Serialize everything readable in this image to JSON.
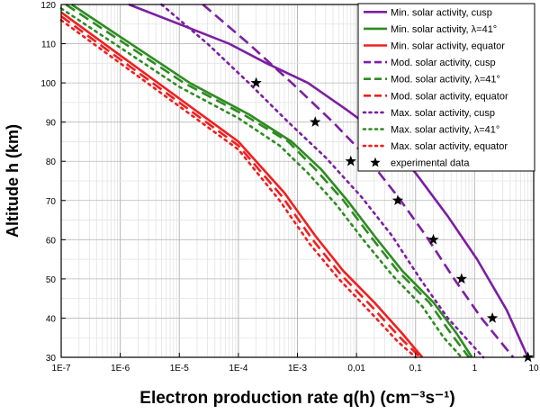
{
  "chart_data": {
    "type": "line",
    "xlabel": "Electron production rate q(h) (cm⁻³s⁻¹)",
    "ylabel": "Altitude h (km)",
    "xscale": "log",
    "xlim": [
      1e-07,
      10
    ],
    "ylim": [
      30,
      120
    ],
    "grid": true,
    "legend_position": "top-right",
    "x_ticks": [
      {
        "value": 1e-07,
        "label": "1E-7"
      },
      {
        "value": 1e-06,
        "label": "1E-6"
      },
      {
        "value": 1e-05,
        "label": "1E-5"
      },
      {
        "value": 0.0001,
        "label": "1E-4"
      },
      {
        "value": 0.001,
        "label": "1E-3"
      },
      {
        "value": 0.01,
        "label": "0,01"
      },
      {
        "value": 0.1,
        "label": "0,1"
      },
      {
        "value": 1,
        "label": "1"
      },
      {
        "value": 10,
        "label": "10"
      }
    ],
    "y_ticks": [
      30,
      40,
      50,
      60,
      70,
      80,
      90,
      100,
      110,
      120
    ],
    "series": [
      {
        "name": "Min. solar activity, cusp",
        "color": "#7B1FA2",
        "style": "solid",
        "x": [
          1.4e-06,
          1e-05,
          7e-05,
          0.0003,
          0.0015,
          0.007,
          0.03,
          0.1,
          0.35,
          1.1,
          3.5,
          8
        ],
        "y": [
          120,
          115,
          110,
          105,
          100,
          93,
          86,
          77,
          66,
          55,
          42,
          30
        ]
      },
      {
        "name": "Min. solar activity, λ=41°",
        "color": "#2E8B22",
        "style": "solid",
        "x": [
          1.5e-07,
          1.5e-06,
          1.5e-05,
          0.00015,
          0.0008,
          0.0025,
          0.007,
          0.02,
          0.06,
          0.2,
          0.5,
          0.9
        ],
        "y": [
          120,
          110,
          100,
          92,
          85,
          78,
          70,
          61,
          52,
          44,
          36,
          30
        ]
      },
      {
        "name": "Min. solar activity, equator",
        "color": "#EE2020",
        "style": "solid",
        "x": [
          1e-07,
          1e-06,
          1e-05,
          0.0001,
          0.0006,
          0.002,
          0.006,
          0.02,
          0.06,
          0.13
        ],
        "y": [
          118,
          107,
          96,
          85,
          72,
          61,
          52,
          44,
          36,
          30
        ]
      },
      {
        "name": "Mod. solar activity, cusp",
        "color": "#7B1FA2",
        "style": "dash",
        "x": [
          2.5e-05,
          0.00015,
          0.0008,
          0.004,
          0.015,
          0.05,
          0.15,
          0.45,
          1.3,
          4.5
        ],
        "y": [
          120,
          110,
          100,
          90,
          81,
          71,
          61,
          50,
          40,
          30
        ]
      },
      {
        "name": "Mod. solar activity, λ=41°",
        "color": "#2E8B22",
        "style": "dash",
        "x": [
          1.2e-07,
          1.2e-06,
          1.2e-05,
          0.00012,
          0.0007,
          0.002,
          0.006,
          0.017,
          0.05,
          0.17,
          0.4,
          0.8
        ],
        "y": [
          120,
          110,
          100,
          92,
          85,
          78,
          70,
          61,
          52,
          44,
          36,
          30
        ]
      },
      {
        "name": "Mod. solar activity, equator",
        "color": "#EE2020",
        "style": "dash",
        "x": [
          1e-07,
          1e-06,
          1e-05,
          0.0001,
          0.00055,
          0.0018,
          0.0055,
          0.018,
          0.055,
          0.12
        ],
        "y": [
          117,
          106,
          95,
          84,
          71,
          60,
          51,
          43,
          35,
          30
        ]
      },
      {
        "name": "Max. solar activity, cusp",
        "color": "#7B1FA2",
        "style": "dot",
        "x": [
          5e-06,
          3e-05,
          0.00015,
          0.0007,
          0.003,
          0.012,
          0.04,
          0.12,
          0.35,
          1.4
        ],
        "y": [
          120,
          110,
          100,
          90,
          81,
          71,
          61,
          50,
          40,
          30
        ]
      },
      {
        "name": "Max. solar activity, λ=41°",
        "color": "#2E8B22",
        "style": "dot",
        "x": [
          1e-07,
          1e-06,
          1e-05,
          0.0001,
          0.0005,
          0.0015,
          0.0045,
          0.013,
          0.04,
          0.13,
          0.3,
          0.6
        ],
        "y": [
          119,
          109,
          99,
          91,
          84,
          77,
          69,
          60,
          51,
          43,
          35,
          30
        ]
      },
      {
        "name": "Max. solar activity, equator",
        "color": "#EE2020",
        "style": "dot",
        "x": [
          1e-07,
          1e-06,
          1e-05,
          0.0001,
          0.0005,
          0.0016,
          0.005,
          0.016,
          0.05,
          0.1
        ],
        "y": [
          116,
          105,
          94,
          83,
          70,
          59,
          50,
          42,
          34,
          30
        ]
      }
    ],
    "experimental_data": {
      "name": "experimental data",
      "color": "#000000",
      "marker": "star",
      "x": [
        0.0002,
        0.002,
        0.008,
        0.05,
        0.2,
        0.6,
        2,
        8
      ],
      "y": [
        100,
        90,
        80,
        70,
        60,
        50,
        40,
        30
      ]
    }
  }
}
